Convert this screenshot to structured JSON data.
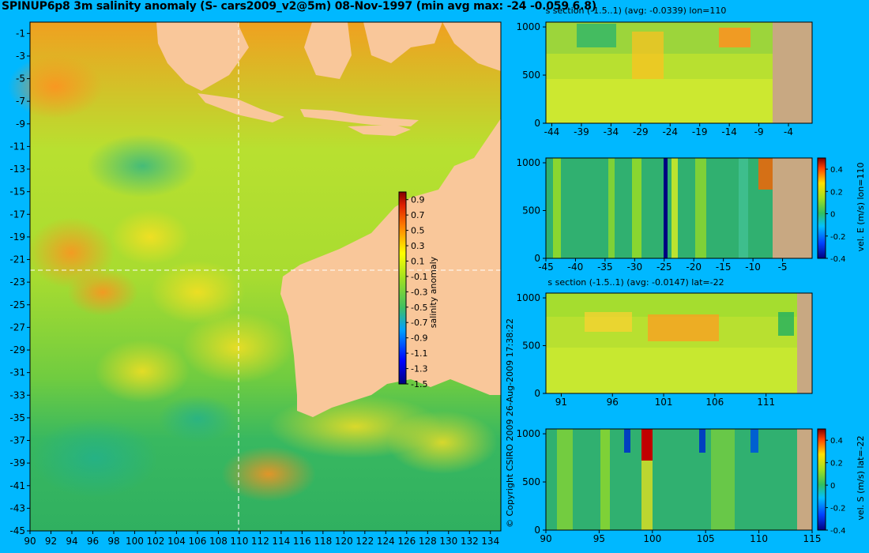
{
  "title": "SPINUP6p8 3m salinity anomaly (S- cars2009_v2@5m) 08-Nov-1997 (min avg max: -24 -0.059 6.8)",
  "copyright": "© Copyright CSIRO 2009   26-Aug-2009 17:38:22",
  "colors": {
    "background": "#00b8ff",
    "land": "#f9c79a",
    "section_land": "#c8a882",
    "crosshair": "#ffffff"
  },
  "chart_data": [
    {
      "id": "map",
      "type": "heatmap",
      "title": "SPINUP6p8 3m salinity anomaly (S- cars2009_v2@5m) 08-Nov-1997 (min avg max: -24 -0.059 6.8)",
      "xlim": [
        90,
        135
      ],
      "ylim": [
        -45,
        0
      ],
      "x_ticks": [
        "90",
        "92",
        "94",
        "96",
        "98",
        "100",
        "102",
        "104",
        "106",
        "108",
        "110",
        "112",
        "114",
        "116",
        "118",
        "120",
        "122",
        "124",
        "126",
        "128",
        "130",
        "132",
        "134"
      ],
      "y_ticks": [
        "-1",
        "-3",
        "-5",
        "-7",
        "-9",
        "-11",
        "-13",
        "-15",
        "-17",
        "-19",
        "-21",
        "-23",
        "-25",
        "-27",
        "-29",
        "-31",
        "-33",
        "-35",
        "-37",
        "-39",
        "-41",
        "-43",
        "-45"
      ],
      "crosshair_lon": 110,
      "crosshair_lat": -22,
      "colorbar": {
        "label": "salinity anomaly",
        "range": [
          -1.5,
          1.0
        ],
        "ticks": [
          "0.9",
          "0.7",
          "0.5",
          "0.3",
          "0.1",
          "-0.1",
          "-0.3",
          "-0.5",
          "-0.7",
          "-0.9",
          "-1.1",
          "-1.3",
          "-1.5"
        ]
      }
    },
    {
      "id": "section1",
      "type": "heatmap",
      "title": "s section (-1.5..1) (avg: -0.0339) lon=110",
      "xlim": [
        -45,
        0
      ],
      "ylim": [
        1050,
        0
      ],
      "x_ticks": [
        "-44",
        "-39",
        "-34",
        "-29",
        "-24",
        "-19",
        "-14",
        "-9",
        "-4"
      ],
      "y_ticks": [
        "0",
        "500",
        "1000"
      ],
      "land_from_x": -8.5
    },
    {
      "id": "section2",
      "type": "heatmap",
      "title": "",
      "xlim": [
        -45,
        0
      ],
      "ylim": [
        1050,
        0
      ],
      "x_ticks": [
        "-45",
        "-40",
        "-35",
        "-30",
        "-25",
        "-20",
        "-15",
        "-10",
        "-5"
      ],
      "y_ticks": [
        "0",
        "500",
        "1000"
      ],
      "land_from_x": -8.5,
      "colorbar": {
        "label": "vel. E (m/s) lon=110",
        "range": [
          -0.4,
          0.5
        ],
        "ticks": [
          "0.4",
          "0.2",
          "0",
          "-0.2",
          "-0.4"
        ]
      }
    },
    {
      "id": "section3",
      "type": "heatmap",
      "title": "s section (-1.5..1) (avg: -0.0147) lat=-22",
      "xlim": [
        89.5,
        115.5
      ],
      "ylim": [
        1050,
        0
      ],
      "x_ticks": [
        "91",
        "96",
        "101",
        "106",
        "111"
      ],
      "y_ticks": [
        "0",
        "500",
        "1000"
      ],
      "land_from_x": 113.5
    },
    {
      "id": "section4",
      "type": "heatmap",
      "title": "",
      "xlim": [
        90,
        115
      ],
      "ylim": [
        1050,
        0
      ],
      "x_ticks": [
        "90",
        "95",
        "100",
        "105",
        "110",
        "115"
      ],
      "y_ticks": [
        "0",
        "500",
        "1000"
      ],
      "land_from_x": 113.8,
      "colorbar": {
        "label": "vel. S (m/s) lat=-22",
        "range": [
          -0.4,
          0.5
        ],
        "ticks": [
          "0.4",
          "0.2",
          "0",
          "-0.2",
          "-0.4"
        ]
      }
    }
  ]
}
